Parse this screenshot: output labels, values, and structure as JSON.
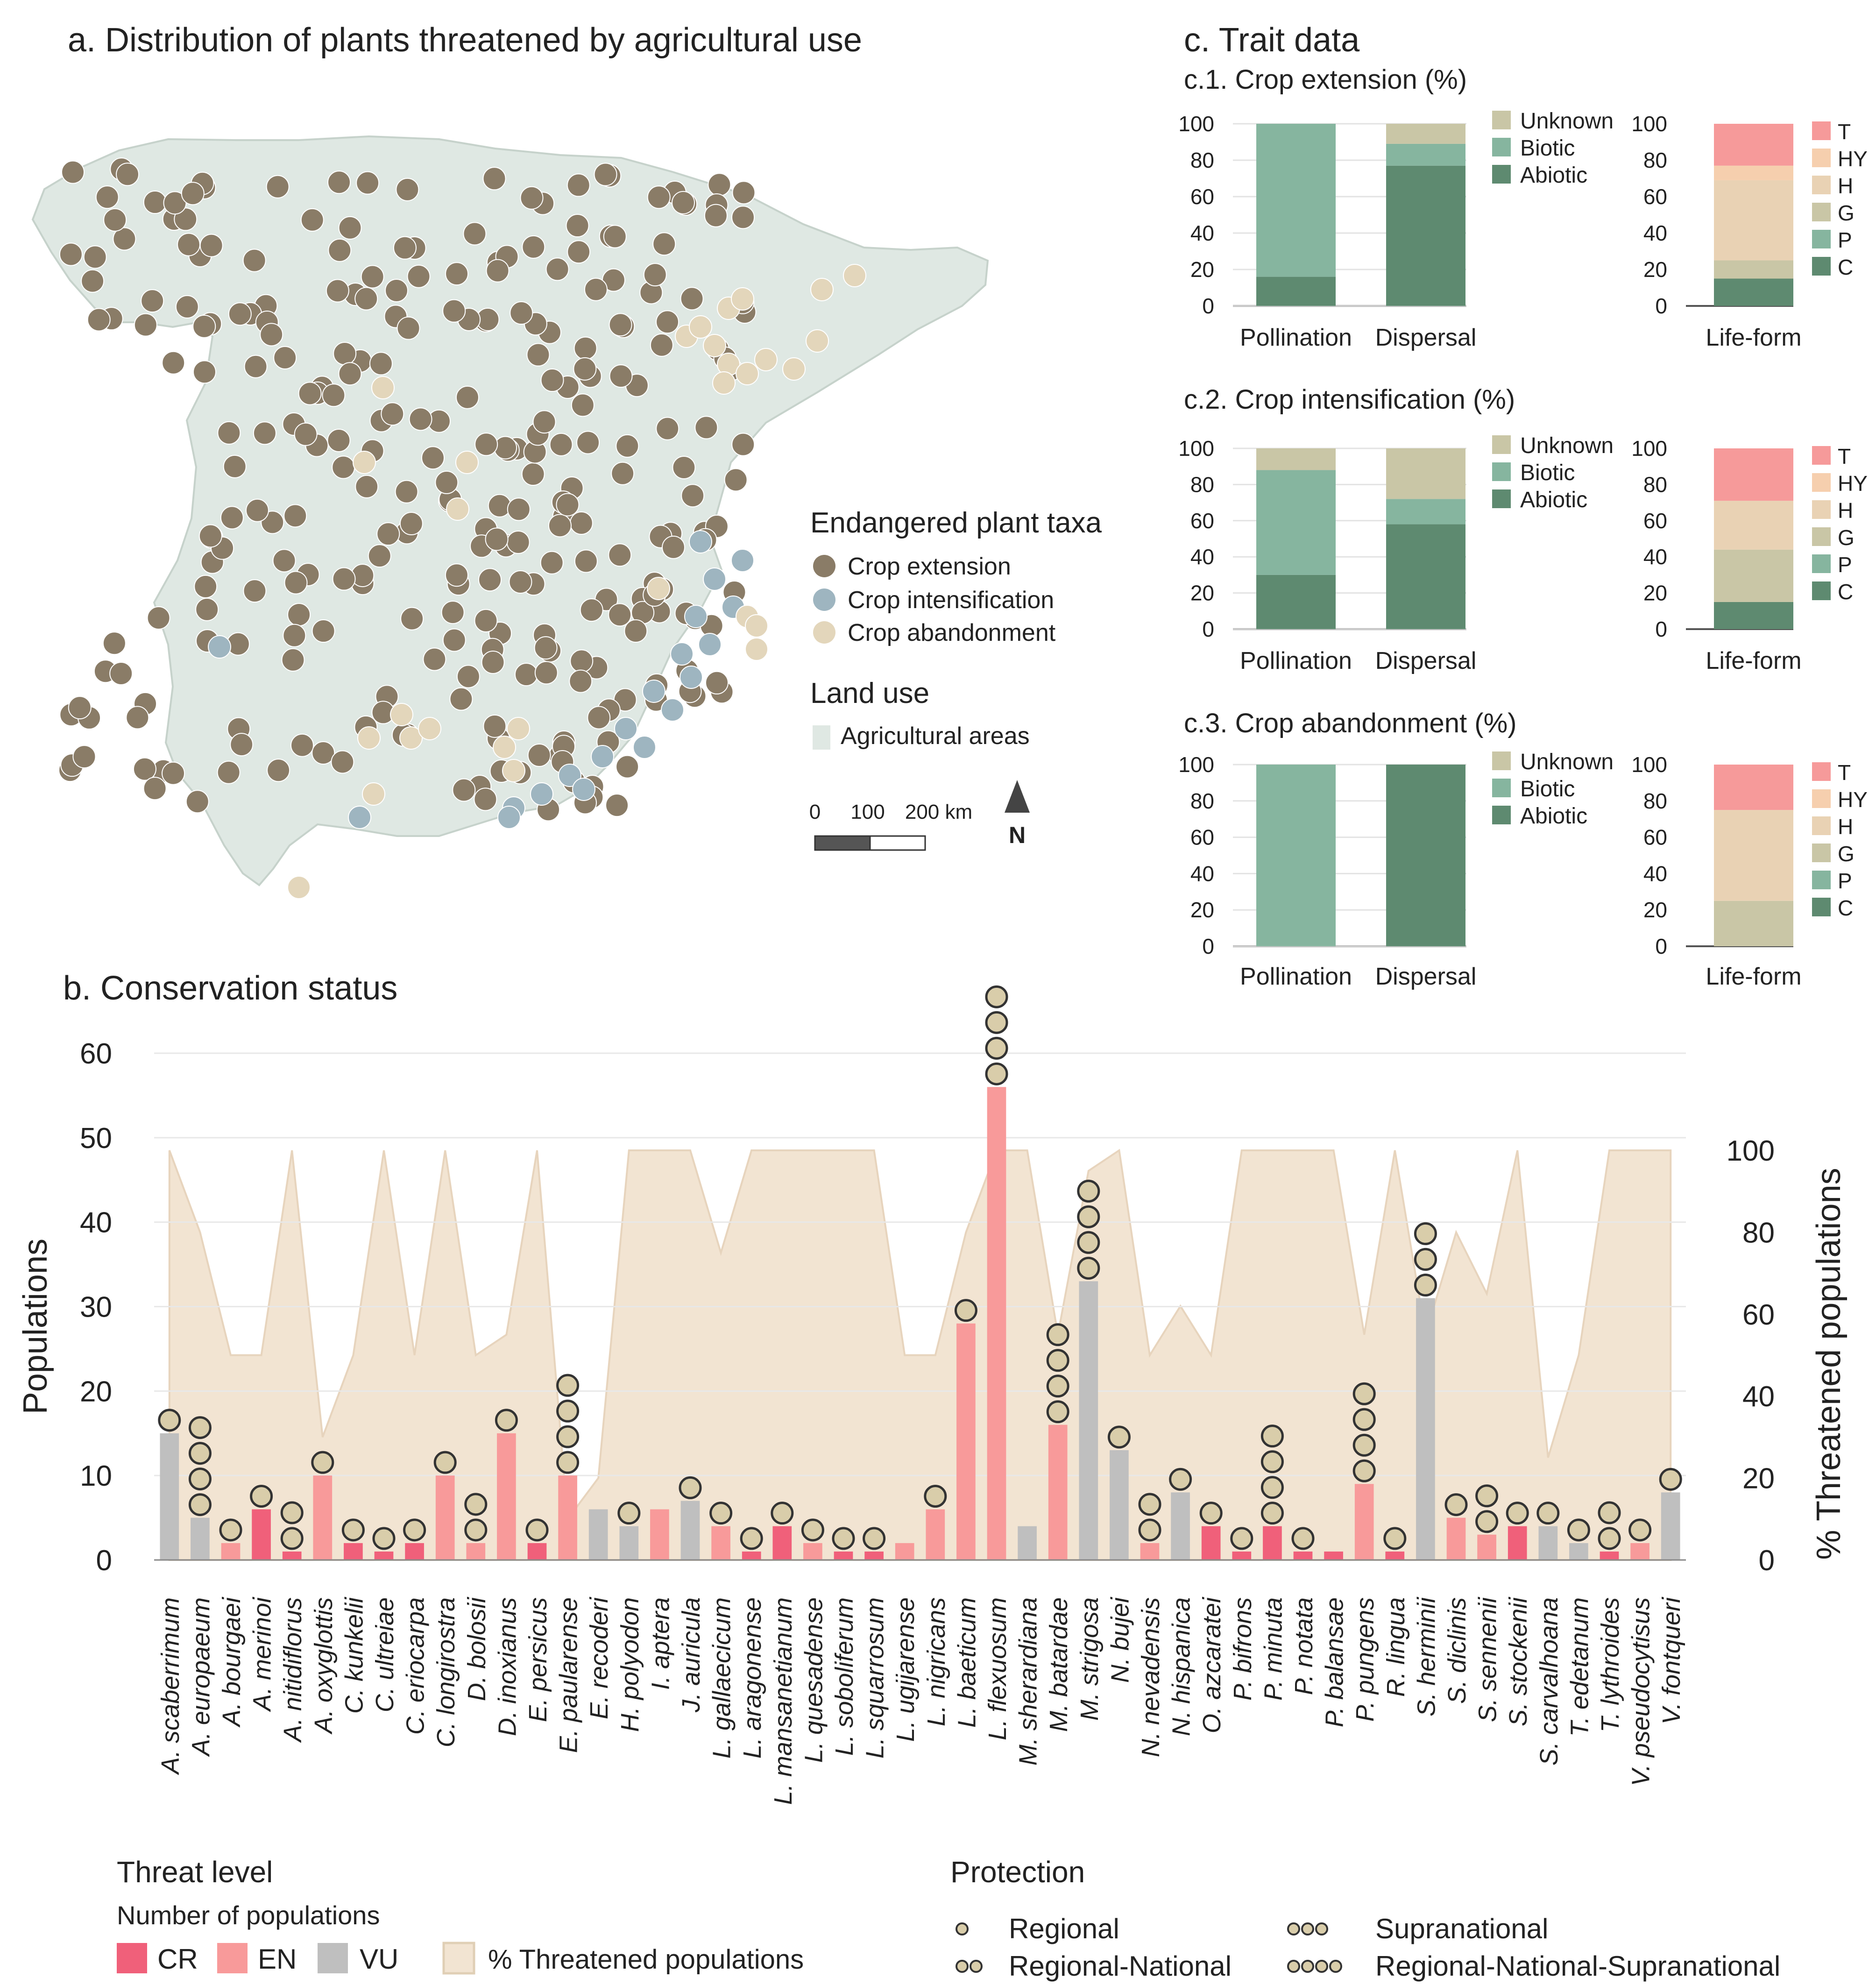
{
  "panel_a": {
    "title": "a. Distribution of plants threatened by agricultural use",
    "legend_title": "Endangered plant taxa",
    "legend_items": [
      {
        "label": "Crop extension",
        "color": "#8a7c67"
      },
      {
        "label": "Crop intensification",
        "color": "#9eb5c0"
      },
      {
        "label": "Crop abandonment",
        "color": "#e3d6bb"
      }
    ],
    "landuse_title": "Land use",
    "landuse_label": "Agricultural areas",
    "landuse_color": "#dfe8e3",
    "scale_ticks": [
      "0",
      "100",
      "200 km"
    ],
    "north_label": "N"
  },
  "panel_c": {
    "title": "c. Trait data",
    "stack_legend": [
      "Unknown",
      "Biotic",
      "Abiotic"
    ],
    "stack_colors": {
      "Unknown": "#c9c6a6",
      "Biotic": "#86b59f",
      "Abiotic": "#5e8a70"
    },
    "lifeform_legend": [
      "T",
      "HY",
      "H",
      "G",
      "P",
      "C"
    ],
    "lifeform_colors": {
      "T": "#f69a9a",
      "HY": "#f6cfae",
      "H": "#e9d2b4",
      "G": "#c9c6a6",
      "P": "#86b59f",
      "C": "#5e8a70"
    },
    "yticks": [
      "100",
      "80",
      "60",
      "40",
      "20",
      "0"
    ],
    "xlabels": {
      "pollination": "Pollination",
      "dispersal": "Dispersal",
      "lifeform": "Life-form"
    }
  },
  "chart_data": [
    {
      "type": "bar",
      "title": "c.1. Crop extension (%)",
      "categories": [
        "Pollination",
        "Dispersal"
      ],
      "series": [
        {
          "name": "Abiotic",
          "values": [
            16,
            77
          ]
        },
        {
          "name": "Biotic",
          "values": [
            84,
            12
          ]
        },
        {
          "name": "Unknown",
          "values": [
            0,
            11
          ]
        }
      ],
      "lifeform": {
        "T": 23,
        "HY": 8,
        "H": 44,
        "G": 10,
        "P": 0,
        "C": 15
      },
      "ylim": [
        0,
        100
      ]
    },
    {
      "type": "bar",
      "title": "c.2. Crop intensification (%)",
      "categories": [
        "Pollination",
        "Dispersal"
      ],
      "series": [
        {
          "name": "Abiotic",
          "values": [
            30,
            58
          ]
        },
        {
          "name": "Biotic",
          "values": [
            58,
            14
          ]
        },
        {
          "name": "Unknown",
          "values": [
            12,
            28
          ]
        }
      ],
      "lifeform": {
        "T": 29,
        "HY": 0,
        "H": 27,
        "G": 29,
        "P": 0,
        "C": 15
      },
      "ylim": [
        0,
        100
      ]
    },
    {
      "type": "bar",
      "title": "c.3. Crop abandonment (%)",
      "categories": [
        "Pollination",
        "Dispersal"
      ],
      "series": [
        {
          "name": "Abiotic",
          "values": [
            0,
            100
          ]
        },
        {
          "name": "Biotic",
          "values": [
            100,
            0
          ]
        },
        {
          "name": "Unknown",
          "values": [
            0,
            0
          ]
        }
      ],
      "lifeform": {
        "T": 25,
        "HY": 0,
        "H": 50,
        "G": 25,
        "P": 0,
        "C": 0
      },
      "ylim": [
        0,
        100
      ]
    },
    {
      "type": "bar",
      "title": "b. Conservation status",
      "ylabel": "Populations",
      "y2label": "% Threatened populations",
      "ylim": [
        0,
        60
      ],
      "y2lim": [
        0,
        100
      ],
      "yticks": [
        0,
        10,
        20,
        30,
        40,
        50,
        60
      ],
      "y2ticks": [
        0,
        20,
        40,
        60,
        80,
        100
      ],
      "threat_colors": {
        "CR": "#f0607a",
        "EN": "#f89a9a",
        "VU": "#bfbfbf"
      },
      "area_color": "#f2e4d2",
      "taxa": [
        "A. scaberrimum",
        "A. europaeum",
        "A. bourgaei",
        "A. merinoi",
        "A. nitidiflorus",
        "A. oxyglottis",
        "C. kunkelii",
        "C. ultreiae",
        "C. eriocarpa",
        "C. longirostra",
        "D. bolosii",
        "D. inoxianus",
        "E. persicus",
        "E. paularense",
        "E. recoderi",
        "H. polyodon",
        "I. aptera",
        "J. auricula",
        "L. gallaecicum",
        "L. aragonense",
        "L. mansanetianum",
        "L. quesadense",
        "L. soboliferum",
        "L. squarrosum",
        "L. ugijarense",
        "L. nigricans",
        "L. baeticum",
        "L. flexuosum",
        "M. sherardiana",
        "M. batardae",
        "M. strigosa",
        "N. bujei",
        "N. nevadensis",
        "N. hispanica",
        "O. azcaratei",
        "P. bifrons",
        "P. minuta",
        "P. notata",
        "P. balansae",
        "P. pungens",
        "R. lingua",
        "S. herminii",
        "S. diclinis",
        "S. sennenii",
        "S. stockenii",
        "S. carvalhoana",
        "T. edetanum",
        "T. lythroides",
        "V. pseudocytisus",
        "V. fontqueri"
      ],
      "populations": [
        15,
        5,
        2,
        6,
        1,
        10,
        2,
        1,
        2,
        10,
        2,
        15,
        2,
        10,
        6,
        4,
        6,
        7,
        4,
        1,
        4,
        2,
        1,
        1,
        2,
        6,
        28,
        56,
        4,
        16,
        33,
        13,
        2,
        8,
        4,
        1,
        4,
        1,
        1,
        9,
        1,
        31,
        5,
        3,
        4,
        4,
        2,
        1,
        2,
        8
      ],
      "threat": [
        "VU",
        "VU",
        "EN",
        "CR",
        "CR",
        "EN",
        "CR",
        "CR",
        "CR",
        "EN",
        "EN",
        "EN",
        "CR",
        "EN",
        "VU",
        "VU",
        "EN",
        "VU",
        "EN",
        "CR",
        "CR",
        "EN",
        "CR",
        "CR",
        "EN",
        "EN",
        "EN",
        "EN",
        "VU",
        "EN",
        "VU",
        "VU",
        "EN",
        "VU",
        "CR",
        "CR",
        "CR",
        "CR",
        "CR",
        "EN",
        "CR",
        "VU",
        "EN",
        "EN",
        "CR",
        "VU",
        "VU",
        "CR",
        "EN",
        "VU"
      ],
      "protection_level": [
        1,
        4,
        1,
        1,
        2,
        1,
        1,
        1,
        1,
        1,
        2,
        1,
        1,
        4,
        0,
        1,
        0,
        1,
        1,
        1,
        1,
        1,
        1,
        1,
        0,
        1,
        1,
        4,
        0,
        4,
        4,
        1,
        2,
        1,
        1,
        1,
        4,
        1,
        0,
        4,
        1,
        3,
        1,
        2,
        1,
        1,
        1,
        2,
        1,
        1
      ],
      "percent_threatened": [
        100,
        80,
        50,
        50,
        100,
        30,
        50,
        100,
        50,
        100,
        50,
        55,
        100,
        10,
        20,
        100,
        100,
        100,
        75,
        100,
        100,
        100,
        100,
        100,
        50,
        50,
        80,
        100,
        100,
        55,
        95,
        100,
        50,
        62,
        50,
        100,
        100,
        100,
        100,
        55,
        100,
        55,
        80,
        65,
        100,
        25,
        50,
        100,
        100,
        100
      ]
    }
  ],
  "panel_b": {
    "title": "b. Conservation status",
    "ylabel": "Populations",
    "y2label": "% Threatened populations",
    "threat_title": "Threat level",
    "threat_subtitle": "Number of populations",
    "threat_items": [
      {
        "label": "CR",
        "color": "#f0607a"
      },
      {
        "label": "EN",
        "color": "#f89a9a"
      },
      {
        "label": "VU",
        "color": "#bfbfbf"
      }
    ],
    "area_label": "% Threatened populations",
    "protection_title": "Protection",
    "protection_items": [
      {
        "label": "Regional",
        "n": 1
      },
      {
        "label": "Regional-National",
        "n": 2
      },
      {
        "label": "Supranational",
        "n": 3
      },
      {
        "label": "Regional-National-Supranational",
        "n": 4
      }
    ]
  }
}
